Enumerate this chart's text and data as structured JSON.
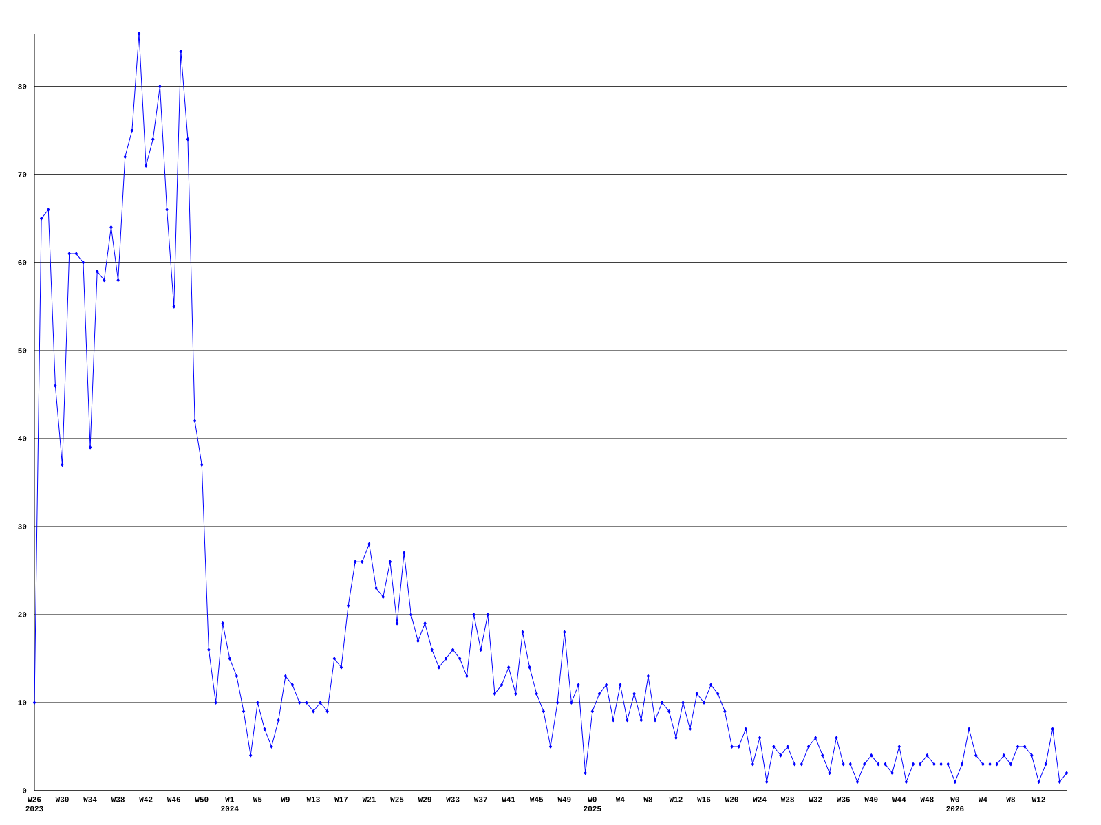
{
  "chart_data": {
    "type": "line",
    "categories": [
      "W26 2023",
      null,
      null,
      null,
      "W30",
      null,
      null,
      null,
      "W34",
      null,
      null,
      null,
      "W38",
      null,
      null,
      null,
      "W42",
      null,
      null,
      null,
      "W46",
      null,
      null,
      null,
      "W50",
      null,
      null,
      null,
      "W1 2024",
      null,
      null,
      null,
      "W5",
      null,
      null,
      null,
      "W9",
      null,
      null,
      null,
      "W13",
      null,
      null,
      null,
      "W17",
      null,
      null,
      null,
      "W21",
      null,
      null,
      null,
      "W25",
      null,
      null,
      null,
      "W29",
      null,
      null,
      null,
      "W33",
      null,
      null,
      null,
      "W37",
      null,
      null,
      null,
      "W41",
      null,
      null,
      null,
      "W45",
      null,
      null,
      null,
      "W49",
      null,
      null,
      null,
      "W0 2025",
      null,
      null,
      null,
      "W4",
      null,
      null,
      null,
      "W8",
      null,
      null,
      null,
      "W12",
      null,
      null,
      null,
      "W16",
      null,
      null,
      null,
      "W20",
      null,
      null,
      null,
      "W24",
      null,
      null,
      null,
      "W28",
      null,
      null,
      null,
      "W32",
      null,
      null,
      null,
      "W36",
      null,
      null,
      null,
      "W40",
      null,
      null,
      null,
      "W44",
      null,
      null,
      null,
      "W48",
      null,
      null,
      null,
      "W0 2026",
      null,
      null,
      null,
      "W4",
      null,
      null,
      null,
      "W8",
      null,
      null,
      null,
      "W12",
      null,
      null,
      null,
      null
    ],
    "values": [
      10,
      65,
      66,
      46,
      37,
      61,
      61,
      60,
      39,
      59,
      58,
      64,
      58,
      72,
      75,
      86,
      71,
      74,
      80,
      66,
      55,
      84,
      74,
      42,
      37,
      16,
      10,
      19,
      15,
      13,
      9,
      4,
      10,
      7,
      5,
      8,
      13,
      12,
      10,
      10,
      9,
      10,
      9,
      15,
      14,
      21,
      26,
      26,
      28,
      23,
      22,
      26,
      19,
      27,
      20,
      17,
      19,
      16,
      14,
      15,
      16,
      15,
      13,
      20,
      16,
      20,
      11,
      12,
      14,
      11,
      18,
      14,
      11,
      9,
      5,
      10,
      18,
      10,
      12,
      2,
      9,
      11,
      12,
      8,
      12,
      8,
      11,
      8,
      13,
      8,
      10,
      9,
      6,
      10,
      7,
      11,
      10,
      12,
      11,
      9,
      5,
      5,
      7,
      3,
      6,
      1,
      5,
      4,
      5,
      3,
      3,
      5,
      6,
      4,
      2,
      6,
      3,
      3,
      1,
      3,
      4,
      3,
      3,
      2,
      5,
      1,
      3,
      3,
      4,
      3,
      3,
      3,
      1,
      3,
      7,
      4,
      3,
      3,
      3,
      4,
      3,
      5,
      5,
      4,
      1,
      3,
      7,
      1,
      2
    ],
    "color": "#0000ff",
    "marker": "diamond",
    "line_style": "solid",
    "ylim": [
      0,
      86
    ],
    "yticks": [
      0,
      10,
      20,
      30,
      40,
      50,
      60,
      70,
      80
    ],
    "grid": "y"
  }
}
